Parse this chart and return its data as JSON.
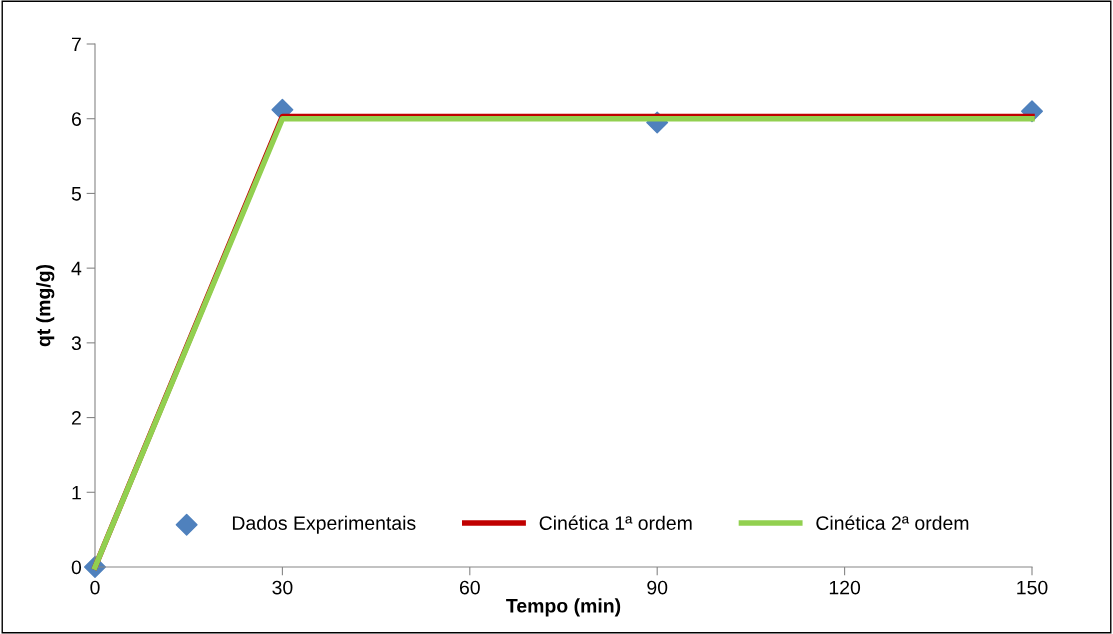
{
  "chart_data": {
    "type": "line",
    "xlabel": "Tempo (min)",
    "ylabel": "qt (mg/g)",
    "x": [
      0,
      30,
      90,
      150
    ],
    "series": [
      {
        "name": "Dados Experimentais",
        "type": "scatter",
        "color": "#4f81bd",
        "marker": "diamond",
        "values": [
          0,
          6.12,
          5.95,
          6.1
        ]
      },
      {
        "name": "Cinética 1ª ordem",
        "color": "#c00000",
        "marker": "none",
        "values": [
          0,
          6.03,
          6.03,
          6.03
        ]
      },
      {
        "name": "Cinética 2ª ordem",
        "color": "#92d050",
        "marker": "none",
        "values": [
          0,
          6.0,
          6.0,
          6.0
        ]
      }
    ],
    "xlim": [
      0,
      150
    ],
    "xticks": [
      0,
      30,
      60,
      90,
      120,
      150
    ],
    "ylim": [
      0,
      7
    ],
    "yticks": [
      0,
      1,
      2,
      3,
      4,
      5,
      6,
      7
    ],
    "grid": false,
    "legend": "bottom"
  }
}
